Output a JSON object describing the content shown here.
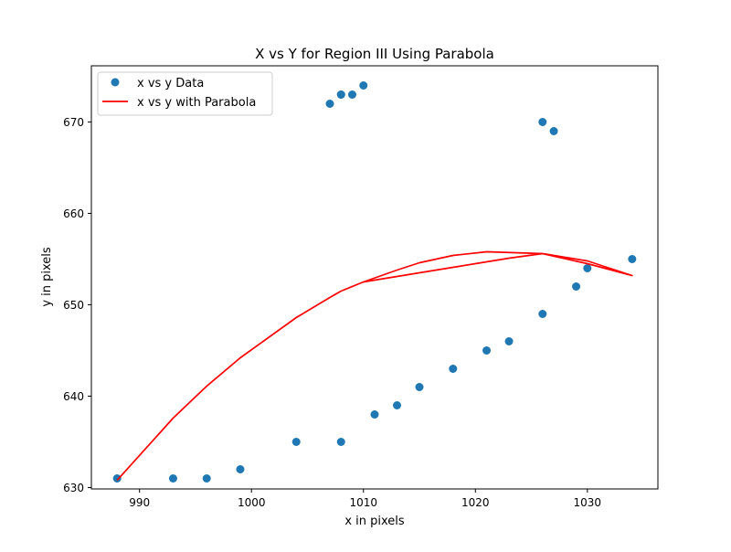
{
  "chart_data": {
    "type": "scatter",
    "title": "X vs Y for Region III Using Parabola",
    "xlabel": "x in pixels",
    "ylabel": "y in pixels",
    "xlim": [
      985.7,
      1036.3
    ],
    "ylim": [
      629.85,
      676.15
    ],
    "xticks": [
      990,
      1000,
      1010,
      1020,
      1030
    ],
    "yticks": [
      630,
      640,
      650,
      660,
      670
    ],
    "legend_position": "top-left",
    "grid": false,
    "series": [
      {
        "name": "x vs y Data",
        "kind": "scatter",
        "color": "#1f77b4",
        "x": [
          988,
          993,
          996,
          999,
          1004,
          1007,
          1008,
          1008,
          1009,
          1010,
          1008,
          1011,
          1013,
          1015,
          1018,
          1021,
          1023,
          1026,
          1026,
          1027,
          1029,
          1030,
          1034
        ],
        "y": [
          631,
          631,
          631,
          632,
          635,
          672,
          673,
          673,
          673,
          674,
          635,
          638,
          639,
          641,
          643,
          645,
          646,
          649,
          670,
          669,
          652,
          654,
          655
        ]
      },
      {
        "name": "x vs y with Parabola",
        "kind": "line",
        "color": "#ff0000",
        "x": [
          988,
          993,
          996,
          999,
          1004,
          1007,
          1008,
          1010,
          1013,
          1015,
          1018,
          1021,
          1023,
          1026,
          1030,
          1034,
          1030,
          1026,
          1021,
          1018,
          1015,
          1013,
          1010,
          1008,
          1007
        ],
        "y": [
          630.8,
          637.6,
          641.1,
          644.2,
          648.6,
          650.8,
          651.5,
          652.5,
          653.1,
          653.5,
          654.1,
          654.7,
          655.1,
          655.6,
          654.5,
          653.2,
          654.8,
          655.6,
          655.8,
          655.4,
          654.6,
          653.8,
          652.5,
          651.5,
          650.8
        ]
      }
    ]
  }
}
